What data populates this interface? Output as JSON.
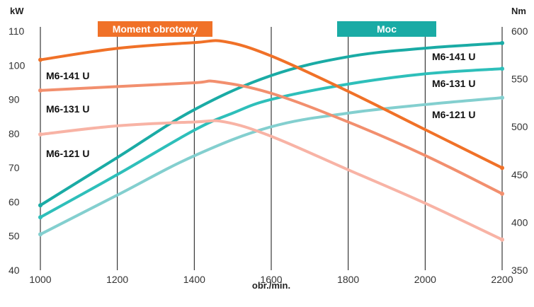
{
  "chart_data": {
    "type": "line",
    "xlabel": "obr./min.",
    "x_ticks": [
      1000,
      1200,
      1400,
      1600,
      1800,
      2000,
      2200
    ],
    "xlim": [
      1000,
      2200
    ],
    "y_left": {
      "label": "kW",
      "ticks": [
        40,
        50,
        60,
        70,
        80,
        90,
        100,
        110
      ],
      "ylim": [
        40,
        110
      ]
    },
    "y_right": {
      "label": "Nm",
      "ticks": [
        350,
        400,
        450,
        500,
        550,
        600
      ],
      "ylim": [
        350,
        600
      ]
    },
    "grid": "vertical",
    "legend": [
      {
        "name": "Moment obrotowy",
        "color": "#f07128"
      },
      {
        "name": "Moc",
        "color": "#1aaba5"
      }
    ],
    "series": [
      {
        "name": "M6-141 U",
        "group": "Moment obrotowy",
        "axis": "right",
        "color": "#f07128",
        "x": [
          1000,
          1200,
          1400,
          1480,
          1600,
          1800,
          2000,
          2200
        ],
        "values": [
          570,
          582,
          588,
          589,
          574,
          537,
          497,
          457
        ]
      },
      {
        "name": "M6-131 U",
        "group": "Moment obrotowy",
        "axis": "right",
        "color": "#f28f6e",
        "x": [
          1000,
          1200,
          1400,
          1460,
          1600,
          1800,
          2000,
          2200
        ],
        "values": [
          538,
          542,
          546,
          547,
          535,
          505,
          470,
          430
        ]
      },
      {
        "name": "M6-121 U",
        "group": "Moment obrotowy",
        "axis": "right",
        "color": "#f8b3a5",
        "x": [
          1000,
          1200,
          1400,
          1480,
          1600,
          1800,
          2000,
          2200
        ],
        "values": [
          492,
          501,
          505,
          505,
          490,
          455,
          420,
          382
        ]
      },
      {
        "name": "M6-141 U",
        "group": "Moc",
        "axis": "left",
        "color": "#1aaba5",
        "x": [
          1000,
          1200,
          1400,
          1600,
          1800,
          2000,
          2200
        ],
        "values": [
          59,
          73,
          87,
          97,
          102.5,
          105,
          106.5
        ]
      },
      {
        "name": "M6-131 U",
        "group": "Moc",
        "axis": "left",
        "color": "#2ebfba",
        "x": [
          1000,
          1200,
          1400,
          1500,
          1600,
          1800,
          2000,
          2200
        ],
        "values": [
          55.5,
          68,
          81,
          86,
          90,
          94.5,
          97.5,
          99
        ]
      },
      {
        "name": "M6-121 U",
        "group": "Moc",
        "axis": "left",
        "color": "#83cfcf",
        "x": [
          1000,
          1200,
          1400,
          1600,
          1800,
          2000,
          2200
        ],
        "values": [
          50.5,
          62,
          73.5,
          82,
          86,
          88.5,
          90.5
        ]
      }
    ],
    "labels": {
      "torque": [
        "M6-141 U",
        "M6-131 U",
        "M6-121 U"
      ],
      "power": [
        "M6-141 U",
        "M6-131 U",
        "M6-121 U"
      ]
    }
  }
}
